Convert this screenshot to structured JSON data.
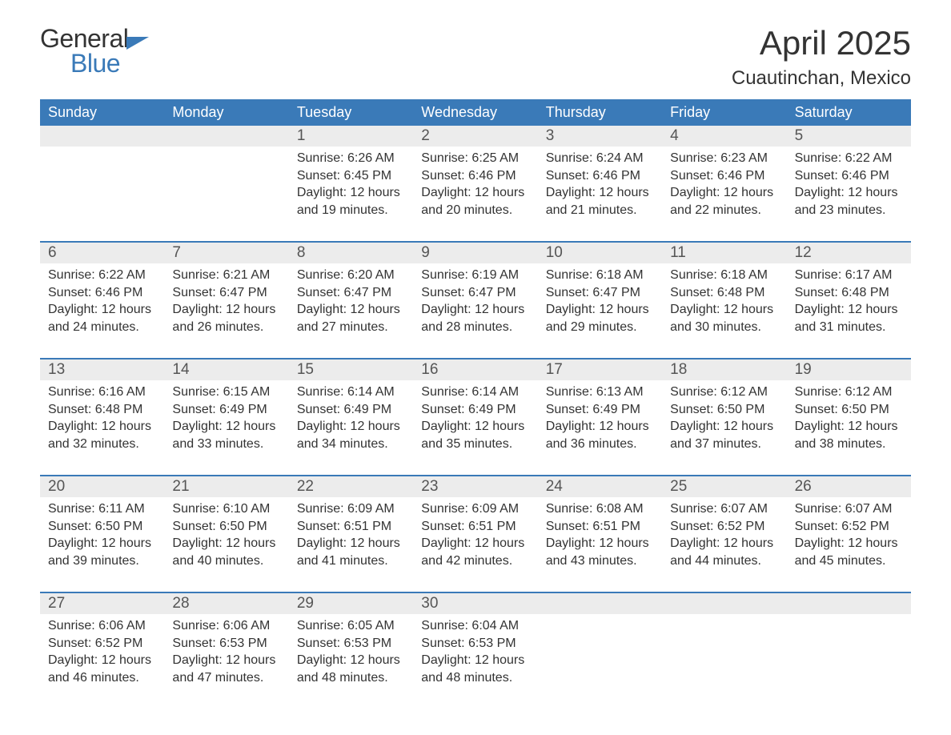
{
  "logo": {
    "word1": "General",
    "word2": "Blue"
  },
  "title": "April 2025",
  "location": "Cuautinchan, Mexico",
  "colors": {
    "header_bg": "#3a7ab8",
    "header_text": "#ffffff",
    "daynum_bg": "#ececec",
    "text": "#333333",
    "rule": "#3a7ab8"
  },
  "dow": [
    "Sunday",
    "Monday",
    "Tuesday",
    "Wednesday",
    "Thursday",
    "Friday",
    "Saturday"
  ],
  "weeks": [
    [
      null,
      null,
      {
        "n": "1",
        "sr": "Sunrise: 6:26 AM",
        "ss": "Sunset: 6:45 PM",
        "dl1": "Daylight: 12 hours",
        "dl2": "and 19 minutes."
      },
      {
        "n": "2",
        "sr": "Sunrise: 6:25 AM",
        "ss": "Sunset: 6:46 PM",
        "dl1": "Daylight: 12 hours",
        "dl2": "and 20 minutes."
      },
      {
        "n": "3",
        "sr": "Sunrise: 6:24 AM",
        "ss": "Sunset: 6:46 PM",
        "dl1": "Daylight: 12 hours",
        "dl2": "and 21 minutes."
      },
      {
        "n": "4",
        "sr": "Sunrise: 6:23 AM",
        "ss": "Sunset: 6:46 PM",
        "dl1": "Daylight: 12 hours",
        "dl2": "and 22 minutes."
      },
      {
        "n": "5",
        "sr": "Sunrise: 6:22 AM",
        "ss": "Sunset: 6:46 PM",
        "dl1": "Daylight: 12 hours",
        "dl2": "and 23 minutes."
      }
    ],
    [
      {
        "n": "6",
        "sr": "Sunrise: 6:22 AM",
        "ss": "Sunset: 6:46 PM",
        "dl1": "Daylight: 12 hours",
        "dl2": "and 24 minutes."
      },
      {
        "n": "7",
        "sr": "Sunrise: 6:21 AM",
        "ss": "Sunset: 6:47 PM",
        "dl1": "Daylight: 12 hours",
        "dl2": "and 26 minutes."
      },
      {
        "n": "8",
        "sr": "Sunrise: 6:20 AM",
        "ss": "Sunset: 6:47 PM",
        "dl1": "Daylight: 12 hours",
        "dl2": "and 27 minutes."
      },
      {
        "n": "9",
        "sr": "Sunrise: 6:19 AM",
        "ss": "Sunset: 6:47 PM",
        "dl1": "Daylight: 12 hours",
        "dl2": "and 28 minutes."
      },
      {
        "n": "10",
        "sr": "Sunrise: 6:18 AM",
        "ss": "Sunset: 6:47 PM",
        "dl1": "Daylight: 12 hours",
        "dl2": "and 29 minutes."
      },
      {
        "n": "11",
        "sr": "Sunrise: 6:18 AM",
        "ss": "Sunset: 6:48 PM",
        "dl1": "Daylight: 12 hours",
        "dl2": "and 30 minutes."
      },
      {
        "n": "12",
        "sr": "Sunrise: 6:17 AM",
        "ss": "Sunset: 6:48 PM",
        "dl1": "Daylight: 12 hours",
        "dl2": "and 31 minutes."
      }
    ],
    [
      {
        "n": "13",
        "sr": "Sunrise: 6:16 AM",
        "ss": "Sunset: 6:48 PM",
        "dl1": "Daylight: 12 hours",
        "dl2": "and 32 minutes."
      },
      {
        "n": "14",
        "sr": "Sunrise: 6:15 AM",
        "ss": "Sunset: 6:49 PM",
        "dl1": "Daylight: 12 hours",
        "dl2": "and 33 minutes."
      },
      {
        "n": "15",
        "sr": "Sunrise: 6:14 AM",
        "ss": "Sunset: 6:49 PM",
        "dl1": "Daylight: 12 hours",
        "dl2": "and 34 minutes."
      },
      {
        "n": "16",
        "sr": "Sunrise: 6:14 AM",
        "ss": "Sunset: 6:49 PM",
        "dl1": "Daylight: 12 hours",
        "dl2": "and 35 minutes."
      },
      {
        "n": "17",
        "sr": "Sunrise: 6:13 AM",
        "ss": "Sunset: 6:49 PM",
        "dl1": "Daylight: 12 hours",
        "dl2": "and 36 minutes."
      },
      {
        "n": "18",
        "sr": "Sunrise: 6:12 AM",
        "ss": "Sunset: 6:50 PM",
        "dl1": "Daylight: 12 hours",
        "dl2": "and 37 minutes."
      },
      {
        "n": "19",
        "sr": "Sunrise: 6:12 AM",
        "ss": "Sunset: 6:50 PM",
        "dl1": "Daylight: 12 hours",
        "dl2": "and 38 minutes."
      }
    ],
    [
      {
        "n": "20",
        "sr": "Sunrise: 6:11 AM",
        "ss": "Sunset: 6:50 PM",
        "dl1": "Daylight: 12 hours",
        "dl2": "and 39 minutes."
      },
      {
        "n": "21",
        "sr": "Sunrise: 6:10 AM",
        "ss": "Sunset: 6:50 PM",
        "dl1": "Daylight: 12 hours",
        "dl2": "and 40 minutes."
      },
      {
        "n": "22",
        "sr": "Sunrise: 6:09 AM",
        "ss": "Sunset: 6:51 PM",
        "dl1": "Daylight: 12 hours",
        "dl2": "and 41 minutes."
      },
      {
        "n": "23",
        "sr": "Sunrise: 6:09 AM",
        "ss": "Sunset: 6:51 PM",
        "dl1": "Daylight: 12 hours",
        "dl2": "and 42 minutes."
      },
      {
        "n": "24",
        "sr": "Sunrise: 6:08 AM",
        "ss": "Sunset: 6:51 PM",
        "dl1": "Daylight: 12 hours",
        "dl2": "and 43 minutes."
      },
      {
        "n": "25",
        "sr": "Sunrise: 6:07 AM",
        "ss": "Sunset: 6:52 PM",
        "dl1": "Daylight: 12 hours",
        "dl2": "and 44 minutes."
      },
      {
        "n": "26",
        "sr": "Sunrise: 6:07 AM",
        "ss": "Sunset: 6:52 PM",
        "dl1": "Daylight: 12 hours",
        "dl2": "and 45 minutes."
      }
    ],
    [
      {
        "n": "27",
        "sr": "Sunrise: 6:06 AM",
        "ss": "Sunset: 6:52 PM",
        "dl1": "Daylight: 12 hours",
        "dl2": "and 46 minutes."
      },
      {
        "n": "28",
        "sr": "Sunrise: 6:06 AM",
        "ss": "Sunset: 6:53 PM",
        "dl1": "Daylight: 12 hours",
        "dl2": "and 47 minutes."
      },
      {
        "n": "29",
        "sr": "Sunrise: 6:05 AM",
        "ss": "Sunset: 6:53 PM",
        "dl1": "Daylight: 12 hours",
        "dl2": "and 48 minutes."
      },
      {
        "n": "30",
        "sr": "Sunrise: 6:04 AM",
        "ss": "Sunset: 6:53 PM",
        "dl1": "Daylight: 12 hours",
        "dl2": "and 48 minutes."
      },
      null,
      null,
      null
    ]
  ]
}
